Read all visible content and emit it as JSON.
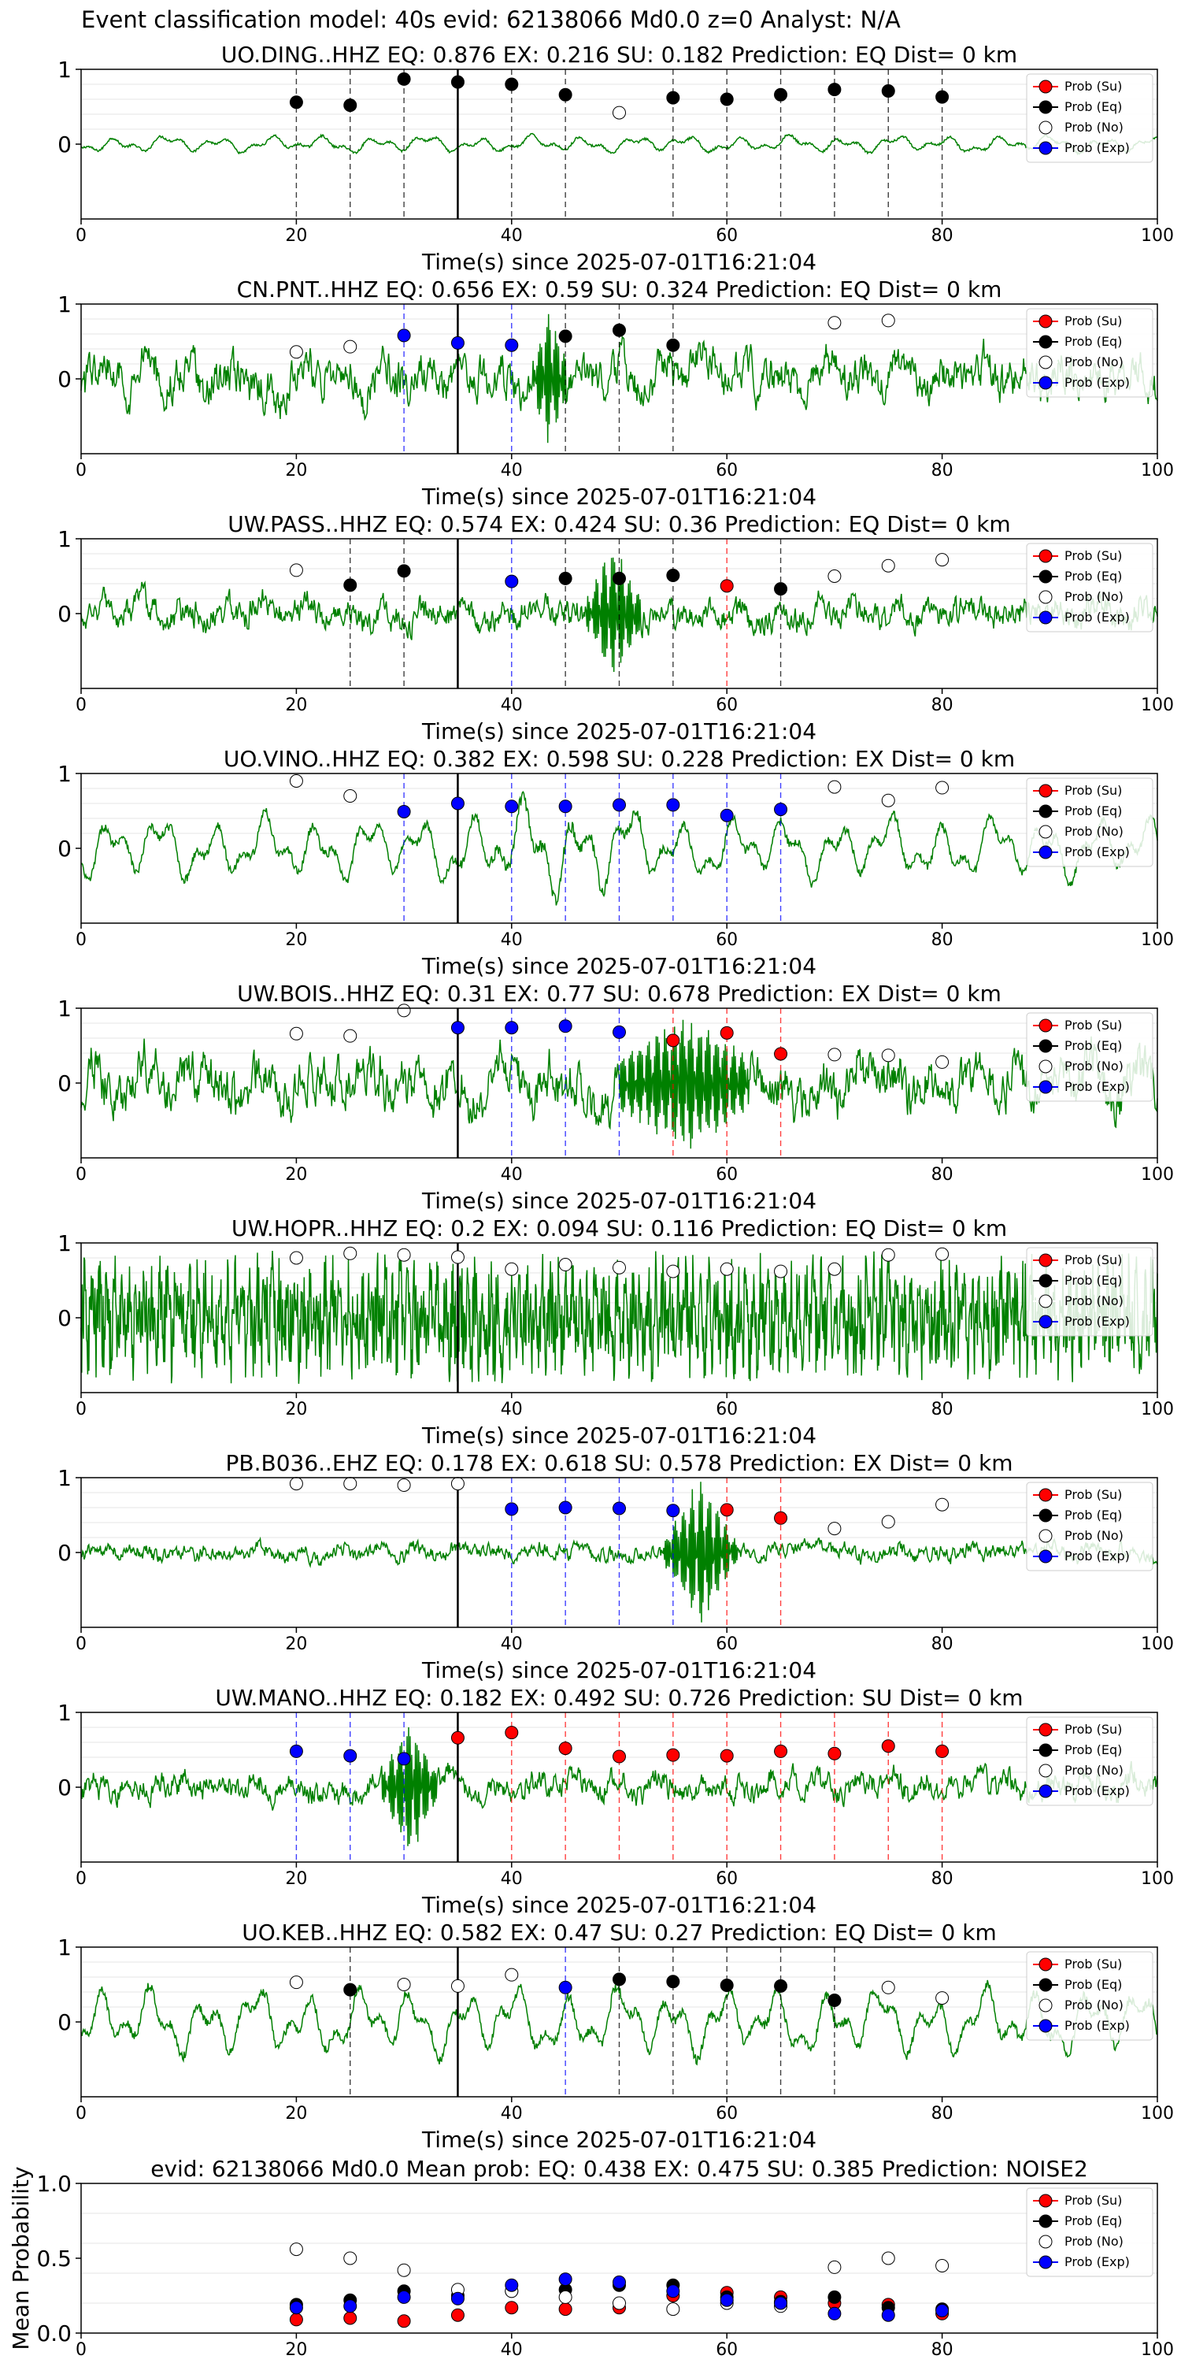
{
  "figure_title": "Event classification model: 40s evid: 62138066 Md0.0 z=0 Analyst: N/A",
  "colors": {
    "trace": "#008000",
    "su": "#ff0000",
    "eq": "#000000",
    "no": "#ffffff",
    "exp": "#0000ff",
    "onset": "#000000",
    "grid": "#e6e6e6"
  },
  "legend_labels": [
    "Prob (Su)",
    "Prob (Eq)",
    "Prob (No)",
    "Prob (Exp)"
  ],
  "chart_data": [
    {
      "type": "line",
      "station": "UO.DING..HHZ",
      "title": "UO.DING..HHZ   EQ: 0.876  EX: 0.216  SU: 0.182   Prediction: EQ    Dist= 0 km",
      "xlabel": "Time(s) since 2025-07-01T16:21:04",
      "xlim": [
        0,
        100
      ],
      "ylim": [
        -1,
        1
      ],
      "yticks": [
        "1",
        "0"
      ],
      "xticks": [
        "0",
        "20",
        "40",
        "60",
        "80",
        "100"
      ],
      "onset_x": 35,
      "legend": "top-right",
      "waveform": {
        "style": "smooth",
        "amplitude": 0.12
      },
      "points": [
        {
          "x": 20,
          "y": 0.56,
          "class": "eq"
        },
        {
          "x": 25,
          "y": 0.52,
          "class": "eq"
        },
        {
          "x": 30,
          "y": 0.87,
          "class": "eq"
        },
        {
          "x": 35,
          "y": 0.83,
          "class": "eq"
        },
        {
          "x": 40,
          "y": 0.8,
          "class": "eq"
        },
        {
          "x": 45,
          "y": 0.66,
          "class": "eq"
        },
        {
          "x": 50,
          "y": 0.42,
          "class": "no"
        },
        {
          "x": 55,
          "y": 0.62,
          "class": "eq"
        },
        {
          "x": 60,
          "y": 0.6,
          "class": "eq"
        },
        {
          "x": 65,
          "y": 0.66,
          "class": "eq"
        },
        {
          "x": 70,
          "y": 0.73,
          "class": "eq"
        },
        {
          "x": 75,
          "y": 0.71,
          "class": "eq"
        },
        {
          "x": 80,
          "y": 0.63,
          "class": "eq"
        }
      ]
    },
    {
      "type": "line",
      "station": "CN.PNT..HHZ",
      "title": "CN.PNT..HHZ   EQ: 0.656  EX: 0.59  SU: 0.324   Prediction: EQ    Dist= 0 km",
      "xlabel": "Time(s) since 2025-07-01T16:21:04",
      "xlim": [
        0,
        100
      ],
      "ylim": [
        -1,
        1
      ],
      "yticks": [
        "1",
        "0"
      ],
      "xticks": [
        "0",
        "20",
        "40",
        "60",
        "80",
        "100"
      ],
      "onset_x": 35,
      "legend": "top-right",
      "waveform": {
        "style": "noisy",
        "amplitude": 0.32,
        "burst": [
          42,
          45,
          0.9
        ]
      },
      "points": [
        {
          "x": 20,
          "y": 0.36,
          "class": "no"
        },
        {
          "x": 25,
          "y": 0.43,
          "class": "no"
        },
        {
          "x": 30,
          "y": 0.58,
          "class": "exp"
        },
        {
          "x": 35,
          "y": 0.48,
          "class": "exp"
        },
        {
          "x": 40,
          "y": 0.45,
          "class": "exp"
        },
        {
          "x": 45,
          "y": 0.57,
          "class": "eq"
        },
        {
          "x": 50,
          "y": 0.65,
          "class": "eq"
        },
        {
          "x": 55,
          "y": 0.45,
          "class": "eq"
        },
        {
          "x": 70,
          "y": 0.75,
          "class": "no"
        },
        {
          "x": 75,
          "y": 0.78,
          "class": "no"
        }
      ]
    },
    {
      "type": "line",
      "station": "UW.PASS..HHZ",
      "title": "UW.PASS..HHZ   EQ: 0.574  EX: 0.424  SU: 0.36   Prediction: EQ    Dist= 0 km",
      "xlabel": "Time(s) since 2025-07-01T16:21:04",
      "xlim": [
        0,
        100
      ],
      "ylim": [
        -1,
        1
      ],
      "yticks": [
        "1",
        "0"
      ],
      "xticks": [
        "0",
        "20",
        "40",
        "60",
        "80",
        "100"
      ],
      "onset_x": 35,
      "legend": "top-right",
      "waveform": {
        "style": "noisy",
        "amplitude": 0.22,
        "burst": [
          47,
          52,
          0.95
        ]
      },
      "points": [
        {
          "x": 20,
          "y": 0.58,
          "class": "no"
        },
        {
          "x": 25,
          "y": 0.38,
          "class": "eq"
        },
        {
          "x": 30,
          "y": 0.57,
          "class": "eq"
        },
        {
          "x": 40,
          "y": 0.43,
          "class": "exp"
        },
        {
          "x": 45,
          "y": 0.47,
          "class": "eq"
        },
        {
          "x": 50,
          "y": 0.47,
          "class": "eq"
        },
        {
          "x": 55,
          "y": 0.51,
          "class": "eq"
        },
        {
          "x": 60,
          "y": 0.37,
          "class": "su"
        },
        {
          "x": 65,
          "y": 0.33,
          "class": "eq"
        },
        {
          "x": 70,
          "y": 0.5,
          "class": "no"
        },
        {
          "x": 75,
          "y": 0.64,
          "class": "no"
        },
        {
          "x": 80,
          "y": 0.72,
          "class": "no"
        }
      ]
    },
    {
      "type": "line",
      "station": "UO.VINO..HHZ",
      "title": "UO.VINO..HHZ   EQ: 0.382  EX: 0.598  SU: 0.228   Prediction: EX    Dist= 0 km",
      "xlabel": "Time(s) since 2025-07-01T16:21:04",
      "xlim": [
        0,
        100
      ],
      "ylim": [
        -1,
        1
      ],
      "yticks": [
        "1",
        "0"
      ],
      "xticks": [
        "0",
        "20",
        "40",
        "60",
        "80",
        "100"
      ],
      "onset_x": 35,
      "legend": "top-right",
      "waveform": {
        "style": "smooth",
        "amplitude": 0.45,
        "burst": [
          33,
          55,
          0.75
        ]
      },
      "points": [
        {
          "x": 20,
          "y": 0.9,
          "class": "no"
        },
        {
          "x": 25,
          "y": 0.7,
          "class": "no"
        },
        {
          "x": 30,
          "y": 0.49,
          "class": "exp"
        },
        {
          "x": 35,
          "y": 0.6,
          "class": "exp"
        },
        {
          "x": 40,
          "y": 0.56,
          "class": "exp"
        },
        {
          "x": 45,
          "y": 0.56,
          "class": "exp"
        },
        {
          "x": 50,
          "y": 0.58,
          "class": "exp"
        },
        {
          "x": 55,
          "y": 0.58,
          "class": "exp"
        },
        {
          "x": 60,
          "y": 0.44,
          "class": "exp"
        },
        {
          "x": 65,
          "y": 0.52,
          "class": "exp"
        },
        {
          "x": 70,
          "y": 0.82,
          "class": "no"
        },
        {
          "x": 75,
          "y": 0.64,
          "class": "no"
        },
        {
          "x": 80,
          "y": 0.81,
          "class": "no"
        }
      ]
    },
    {
      "type": "line",
      "station": "UW.BOIS..HHZ",
      "title": "UW.BOIS..HHZ   EQ: 0.31  EX: 0.77  SU: 0.678   Prediction: EX    Dist= 0 km",
      "xlabel": "Time(s) since 2025-07-01T16:21:04",
      "xlim": [
        0,
        100
      ],
      "ylim": [
        -1,
        1
      ],
      "yticks": [
        "1",
        "0"
      ],
      "xticks": [
        "0",
        "20",
        "40",
        "60",
        "80",
        "100"
      ],
      "onset_x": 35,
      "legend": "top-right",
      "waveform": {
        "style": "noisy",
        "amplitude": 0.38,
        "burst": [
          50,
          62,
          0.9
        ]
      },
      "points": [
        {
          "x": 20,
          "y": 0.66,
          "class": "no"
        },
        {
          "x": 25,
          "y": 0.63,
          "class": "no"
        },
        {
          "x": 30,
          "y": 0.97,
          "class": "no"
        },
        {
          "x": 35,
          "y": 0.74,
          "class": "exp"
        },
        {
          "x": 40,
          "y": 0.74,
          "class": "exp"
        },
        {
          "x": 45,
          "y": 0.76,
          "class": "exp"
        },
        {
          "x": 50,
          "y": 0.68,
          "class": "exp"
        },
        {
          "x": 55,
          "y": 0.57,
          "class": "su"
        },
        {
          "x": 60,
          "y": 0.67,
          "class": "su"
        },
        {
          "x": 65,
          "y": 0.39,
          "class": "su"
        },
        {
          "x": 70,
          "y": 0.38,
          "class": "no"
        },
        {
          "x": 75,
          "y": 0.37,
          "class": "no"
        },
        {
          "x": 80,
          "y": 0.28,
          "class": "no"
        }
      ]
    },
    {
      "type": "line",
      "station": "UW.HOPR..HHZ",
      "title": "UW.HOPR..HHZ   EQ: 0.2  EX: 0.094  SU: 0.116   Prediction: EQ    Dist= 0 km",
      "xlabel": "Time(s) since 2025-07-01T16:21:04",
      "xlim": [
        0,
        100
      ],
      "ylim": [
        -1,
        1
      ],
      "yticks": [
        "1",
        "0"
      ],
      "xticks": [
        "0",
        "20",
        "40",
        "60",
        "80",
        "100"
      ],
      "onset_x": 35,
      "legend": "top-right",
      "waveform": {
        "style": "dense",
        "amplitude": 0.75
      },
      "points": [
        {
          "x": 20,
          "y": 0.8,
          "class": "no"
        },
        {
          "x": 25,
          "y": 0.86,
          "class": "no"
        },
        {
          "x": 30,
          "y": 0.84,
          "class": "no"
        },
        {
          "x": 35,
          "y": 0.81,
          "class": "no"
        },
        {
          "x": 40,
          "y": 0.65,
          "class": "no"
        },
        {
          "x": 45,
          "y": 0.71,
          "class": "no"
        },
        {
          "x": 50,
          "y": 0.67,
          "class": "no"
        },
        {
          "x": 55,
          "y": 0.62,
          "class": "no"
        },
        {
          "x": 60,
          "y": 0.65,
          "class": "no"
        },
        {
          "x": 65,
          "y": 0.62,
          "class": "no"
        },
        {
          "x": 70,
          "y": 0.65,
          "class": "no"
        },
        {
          "x": 75,
          "y": 0.84,
          "class": "no"
        },
        {
          "x": 80,
          "y": 0.85,
          "class": "no"
        }
      ]
    },
    {
      "type": "line",
      "station": "PB.B036..EHZ",
      "title": "PB.B036..EHZ   EQ: 0.178  EX: 0.618  SU: 0.578   Prediction: EX    Dist= 0 km",
      "xlabel": "Time(s) since 2025-07-01T16:21:04",
      "xlim": [
        0,
        100
      ],
      "ylim": [
        -1,
        1
      ],
      "yticks": [
        "1",
        "0"
      ],
      "xticks": [
        "0",
        "20",
        "40",
        "60",
        "80",
        "100"
      ],
      "onset_x": 35,
      "legend": "top-right",
      "waveform": {
        "style": "noisy",
        "amplitude": 0.12,
        "burst": [
          54,
          61,
          1.0
        ]
      },
      "points": [
        {
          "x": 20,
          "y": 0.92,
          "class": "no"
        },
        {
          "x": 25,
          "y": 0.92,
          "class": "no"
        },
        {
          "x": 30,
          "y": 0.9,
          "class": "no"
        },
        {
          "x": 35,
          "y": 0.92,
          "class": "no"
        },
        {
          "x": 40,
          "y": 0.58,
          "class": "exp"
        },
        {
          "x": 45,
          "y": 0.6,
          "class": "exp"
        },
        {
          "x": 50,
          "y": 0.59,
          "class": "exp"
        },
        {
          "x": 55,
          "y": 0.56,
          "class": "exp"
        },
        {
          "x": 60,
          "y": 0.57,
          "class": "su"
        },
        {
          "x": 65,
          "y": 0.46,
          "class": "su"
        },
        {
          "x": 70,
          "y": 0.32,
          "class": "no"
        },
        {
          "x": 75,
          "y": 0.41,
          "class": "no"
        },
        {
          "x": 80,
          "y": 0.64,
          "class": "no"
        }
      ]
    },
    {
      "type": "line",
      "station": "UW.MANO..HHZ",
      "title": "UW.MANO..HHZ   EQ: 0.182  EX: 0.492  SU: 0.726   Prediction: SU    Dist= 0 km",
      "xlabel": "Time(s) since 2025-07-01T16:21:04",
      "xlim": [
        0,
        100
      ],
      "ylim": [
        -1,
        1
      ],
      "yticks": [
        "1",
        "0"
      ],
      "xticks": [
        "0",
        "20",
        "40",
        "60",
        "80",
        "100"
      ],
      "onset_x": 35,
      "legend": "top-right",
      "waveform": {
        "style": "noisy",
        "amplitude": 0.2,
        "burst": [
          28,
          33,
          0.95
        ]
      },
      "points": [
        {
          "x": 20,
          "y": 0.48,
          "class": "exp"
        },
        {
          "x": 25,
          "y": 0.42,
          "class": "exp"
        },
        {
          "x": 30,
          "y": 0.38,
          "class": "exp"
        },
        {
          "x": 35,
          "y": 0.66,
          "class": "su"
        },
        {
          "x": 40,
          "y": 0.73,
          "class": "su"
        },
        {
          "x": 45,
          "y": 0.52,
          "class": "su"
        },
        {
          "x": 50,
          "y": 0.41,
          "class": "su"
        },
        {
          "x": 55,
          "y": 0.43,
          "class": "su"
        },
        {
          "x": 60,
          "y": 0.42,
          "class": "su"
        },
        {
          "x": 65,
          "y": 0.48,
          "class": "su"
        },
        {
          "x": 70,
          "y": 0.45,
          "class": "su"
        },
        {
          "x": 75,
          "y": 0.55,
          "class": "su"
        },
        {
          "x": 80,
          "y": 0.48,
          "class": "su"
        }
      ]
    },
    {
      "type": "line",
      "station": "UO.KEB..HHZ",
      "title": "UO.KEB..HHZ   EQ: 0.582  EX: 0.47  SU: 0.27   Prediction: EQ    Dist= 0 km",
      "xlabel": "Time(s) since 2025-07-01T16:21:04",
      "xlim": [
        0,
        100
      ],
      "ylim": [
        -1,
        1
      ],
      "yticks": [
        "1",
        "0"
      ],
      "xticks": [
        "0",
        "20",
        "40",
        "60",
        "80",
        "100"
      ],
      "onset_x": 35,
      "legend": "top-right",
      "waveform": {
        "style": "smooth",
        "amplitude": 0.48
      },
      "points": [
        {
          "x": 20,
          "y": 0.53,
          "class": "no"
        },
        {
          "x": 25,
          "y": 0.43,
          "class": "eq"
        },
        {
          "x": 30,
          "y": 0.5,
          "class": "no"
        },
        {
          "x": 35,
          "y": 0.48,
          "class": "no"
        },
        {
          "x": 40,
          "y": 0.63,
          "class": "no"
        },
        {
          "x": 45,
          "y": 0.46,
          "class": "exp"
        },
        {
          "x": 50,
          "y": 0.57,
          "class": "eq"
        },
        {
          "x": 55,
          "y": 0.54,
          "class": "eq"
        },
        {
          "x": 60,
          "y": 0.49,
          "class": "eq"
        },
        {
          "x": 65,
          "y": 0.48,
          "class": "eq"
        },
        {
          "x": 70,
          "y": 0.29,
          "class": "eq"
        },
        {
          "x": 75,
          "y": 0.46,
          "class": "no"
        },
        {
          "x": 80,
          "y": 0.32,
          "class": "no"
        }
      ]
    },
    {
      "type": "scatter",
      "station": "mean",
      "title": "evid: 62138066  Md0.0   Mean prob:    EQ: 0.438  EX: 0.475  SU: 0.385   Prediction: NOISE2",
      "xlabel": "",
      "ylabel": "Mean Probability",
      "xlim": [
        0,
        100
      ],
      "ylim": [
        0,
        1
      ],
      "yticks": [
        "1.0",
        "0.5",
        "0.0"
      ],
      "xticks": [
        "0",
        "20",
        "40",
        "60",
        "80",
        "100"
      ],
      "legend": "top-right",
      "x": [
        20,
        25,
        30,
        35,
        40,
        45,
        50,
        55,
        60,
        65,
        70,
        75,
        80
      ],
      "series": [
        {
          "name": "Prob (Su)",
          "class": "su",
          "values": [
            0.09,
            0.1,
            0.08,
            0.12,
            0.17,
            0.16,
            0.17,
            0.25,
            0.27,
            0.24,
            0.2,
            0.19,
            0.13
          ]
        },
        {
          "name": "Prob (Eq)",
          "class": "eq",
          "values": [
            0.19,
            0.22,
            0.28,
            0.25,
            0.28,
            0.29,
            0.32,
            0.32,
            0.24,
            0.21,
            0.24,
            0.17,
            0.16
          ]
        },
        {
          "name": "Prob (No)",
          "class": "no",
          "values": [
            0.56,
            0.5,
            0.42,
            0.29,
            0.28,
            0.24,
            0.2,
            0.16,
            0.2,
            0.18,
            0.44,
            0.5,
            0.45
          ]
        },
        {
          "name": "Prob (Exp)",
          "class": "exp",
          "values": [
            0.17,
            0.18,
            0.24,
            0.23,
            0.32,
            0.36,
            0.34,
            0.28,
            0.22,
            0.2,
            0.13,
            0.12,
            0.15
          ]
        }
      ]
    }
  ]
}
